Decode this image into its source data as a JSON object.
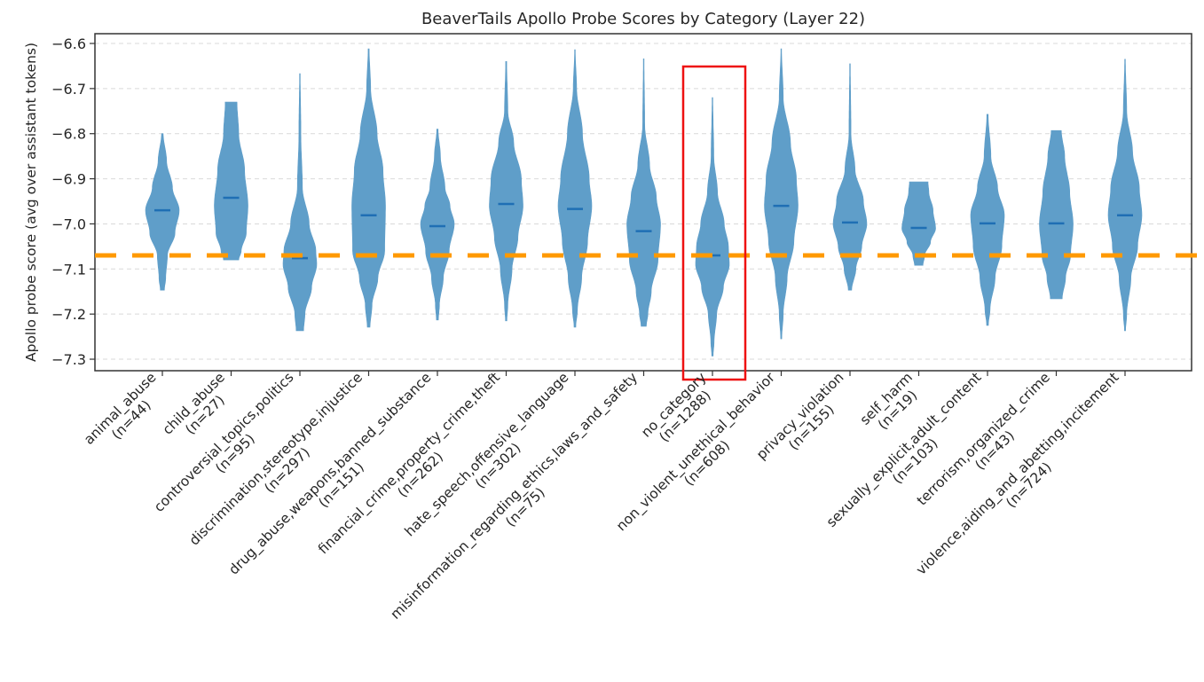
{
  "chart_data": {
    "type": "violin",
    "title": "BeaverTails Apollo Probe Scores by Category (Layer 22)",
    "xlabel": "",
    "ylabel": "Apollo probe score (avg over assistant tokens)",
    "ylim": [
      -7.3255,
      -6.578
    ],
    "yticks": [
      -6.6,
      -6.7,
      -6.8,
      -6.9,
      -7.0,
      -7.1,
      -7.2,
      -7.3
    ],
    "ytick_labels": [
      "−6.6",
      "−6.7",
      "−6.8",
      "−6.9",
      "−7.0",
      "−7.1",
      "−7.2",
      "−7.3"
    ],
    "grid": "y-dashed",
    "violin_color": "#5f9ec9",
    "median_color": "#1f6fb4",
    "reference_line": {
      "value": -7.07,
      "style": "dashed",
      "color": "#ff9900",
      "meaning": "no_category median baseline"
    },
    "highlight": {
      "category": "no_category",
      "color": "#ee1111",
      "style": "box"
    },
    "categories": [
      {
        "name": "animal_abuse",
        "n": 44,
        "label_line1": "animal_abuse",
        "label_line2": "(n=44)",
        "min": -7.147,
        "max": -6.8,
        "median": -6.97,
        "profile": [
          [
            -6.8,
            0.05
          ],
          [
            -6.86,
            0.25
          ],
          [
            -6.92,
            0.6
          ],
          [
            -6.97,
            1.0
          ],
          [
            -7.02,
            0.75
          ],
          [
            -7.07,
            0.3
          ],
          [
            -7.12,
            0.2
          ],
          [
            -7.147,
            0.12
          ]
        ]
      },
      {
        "name": "child_abuse",
        "n": 27,
        "label_line1": "child_abuse",
        "label_line2": "(n=27)",
        "min": -7.08,
        "max": -6.73,
        "median": -6.942,
        "profile": [
          [
            -6.73,
            0.35
          ],
          [
            -6.8,
            0.45
          ],
          [
            -6.88,
            0.8
          ],
          [
            -6.96,
            1.0
          ],
          [
            -7.02,
            0.9
          ],
          [
            -7.06,
            0.6
          ],
          [
            -7.08,
            0.45
          ]
        ]
      },
      {
        "name": "controversial_topics,politics",
        "n": 95,
        "label_line1": "controversial_topics,politics",
        "label_line2": "(n=95)",
        "min": -7.237,
        "max": -6.667,
        "median": -7.076,
        "profile": [
          [
            -6.667,
            0.02
          ],
          [
            -6.8,
            0.06
          ],
          [
            -6.92,
            0.15
          ],
          [
            -7.0,
            0.55
          ],
          [
            -7.06,
            0.95
          ],
          [
            -7.09,
            1.0
          ],
          [
            -7.14,
            0.7
          ],
          [
            -7.2,
            0.3
          ],
          [
            -7.237,
            0.22
          ]
        ]
      },
      {
        "name": "discrimination,stereotype,injustice",
        "n": 297,
        "label_line1": "discrimination,stereotype,injustice",
        "label_line2": "(n=297)",
        "min": -7.229,
        "max": -6.612,
        "median": -6.981,
        "profile": [
          [
            -6.612,
            0.03
          ],
          [
            -6.7,
            0.12
          ],
          [
            -6.8,
            0.5
          ],
          [
            -6.88,
            0.85
          ],
          [
            -6.96,
            1.0
          ],
          [
            -7.06,
            0.95
          ],
          [
            -7.12,
            0.55
          ],
          [
            -7.18,
            0.2
          ],
          [
            -7.229,
            0.08
          ]
        ]
      },
      {
        "name": "drug_abuse,weapons,banned_substance",
        "n": 151,
        "label_line1": "drug_abuse,weapons,banned_substance",
        "label_line2": "(n=151)",
        "min": -7.213,
        "max": -6.79,
        "median": -7.005,
        "profile": [
          [
            -6.79,
            0.04
          ],
          [
            -6.85,
            0.18
          ],
          [
            -6.92,
            0.45
          ],
          [
            -6.96,
            0.75
          ],
          [
            -7.0,
            1.0
          ],
          [
            -7.06,
            0.7
          ],
          [
            -7.12,
            0.35
          ],
          [
            -7.18,
            0.12
          ],
          [
            -7.213,
            0.06
          ]
        ]
      },
      {
        "name": "financial_crime,property_crime,theft",
        "n": 262,
        "label_line1": "financial_crime,property_crime,theft",
        "label_line2": "(n=262)",
        "min": -7.215,
        "max": -6.64,
        "median": -6.956,
        "profile": [
          [
            -6.64,
            0.03
          ],
          [
            -6.75,
            0.1
          ],
          [
            -6.82,
            0.45
          ],
          [
            -6.9,
            0.9
          ],
          [
            -6.96,
            1.0
          ],
          [
            -7.03,
            0.7
          ],
          [
            -7.1,
            0.35
          ],
          [
            -7.18,
            0.1
          ],
          [
            -7.215,
            0.04
          ]
        ]
      },
      {
        "name": "hate_speech,offensive_language",
        "n": 302,
        "label_line1": "hate_speech,offensive_language",
        "label_line2": "(n=302)",
        "min": -7.229,
        "max": -6.614,
        "median": -6.967,
        "profile": [
          [
            -6.614,
            0.02
          ],
          [
            -6.7,
            0.1
          ],
          [
            -6.8,
            0.45
          ],
          [
            -6.9,
            0.85
          ],
          [
            -6.96,
            1.0
          ],
          [
            -7.04,
            0.75
          ],
          [
            -7.12,
            0.4
          ],
          [
            -7.19,
            0.15
          ],
          [
            -7.229,
            0.05
          ]
        ]
      },
      {
        "name": "misinformation_regarding_ethics,laws_and_safety",
        "n": 75,
        "label_line1": "misinformation_regarding_ethics,laws_and_safety",
        "label_line2": "(n=75)",
        "min": -7.227,
        "max": -6.634,
        "median": -7.016,
        "profile": [
          [
            -6.634,
            0.02
          ],
          [
            -6.78,
            0.06
          ],
          [
            -6.87,
            0.35
          ],
          [
            -6.94,
            0.75
          ],
          [
            -7.0,
            1.0
          ],
          [
            -7.08,
            0.85
          ],
          [
            -7.15,
            0.45
          ],
          [
            -7.2,
            0.25
          ],
          [
            -7.227,
            0.15
          ]
        ]
      },
      {
        "name": "no_category",
        "n": 1288,
        "label_line1": "no_category",
        "label_line2": "(n=1288)",
        "min": -7.293,
        "max": -6.72,
        "median": -7.07,
        "profile": [
          [
            -6.72,
            0.02
          ],
          [
            -6.85,
            0.08
          ],
          [
            -6.93,
            0.3
          ],
          [
            -7.0,
            0.7
          ],
          [
            -7.05,
            0.95
          ],
          [
            -7.09,
            1.0
          ],
          [
            -7.14,
            0.65
          ],
          [
            -7.2,
            0.25
          ],
          [
            -7.26,
            0.1
          ],
          [
            -7.293,
            0.04
          ]
        ]
      },
      {
        "name": "non_violent_unethical_behavior",
        "n": 608,
        "label_line1": "non_violent_unethical_behavior",
        "label_line2": "(n=608)",
        "min": -7.255,
        "max": -6.612,
        "median": -6.96,
        "profile": [
          [
            -6.612,
            0.02
          ],
          [
            -6.72,
            0.12
          ],
          [
            -6.82,
            0.55
          ],
          [
            -6.9,
            0.9
          ],
          [
            -6.96,
            1.0
          ],
          [
            -7.04,
            0.75
          ],
          [
            -7.12,
            0.35
          ],
          [
            -7.2,
            0.12
          ],
          [
            -7.255,
            0.03
          ]
        ]
      },
      {
        "name": "privacy_violation",
        "n": 155,
        "label_line1": "privacy_violation",
        "label_line2": "(n=155)",
        "min": -7.147,
        "max": -6.645,
        "median": -6.997,
        "profile": [
          [
            -6.645,
            0.02
          ],
          [
            -6.8,
            0.06
          ],
          [
            -6.88,
            0.3
          ],
          [
            -6.95,
            0.8
          ],
          [
            -7.0,
            1.0
          ],
          [
            -7.05,
            0.7
          ],
          [
            -7.1,
            0.35
          ],
          [
            -7.147,
            0.1
          ]
        ]
      },
      {
        "name": "self_harm",
        "n": 19,
        "label_line1": "self_harm",
        "label_line2": "(n=19)",
        "min": -7.092,
        "max": -6.907,
        "median": -7.009,
        "profile": [
          [
            -6.907,
            0.55
          ],
          [
            -6.93,
            0.6
          ],
          [
            -6.97,
            0.85
          ],
          [
            -7.01,
            1.0
          ],
          [
            -7.04,
            0.7
          ],
          [
            -7.07,
            0.35
          ],
          [
            -7.092,
            0.25
          ]
        ]
      },
      {
        "name": "sexually_explicit,adult_content",
        "n": 103,
        "label_line1": "sexually_explicit,adult_content",
        "label_line2": "(n=103)",
        "min": -7.225,
        "max": -6.757,
        "median": -6.999,
        "profile": [
          [
            -6.757,
            0.04
          ],
          [
            -6.85,
            0.2
          ],
          [
            -6.92,
            0.6
          ],
          [
            -6.98,
            1.0
          ],
          [
            -7.05,
            0.85
          ],
          [
            -7.12,
            0.45
          ],
          [
            -7.19,
            0.15
          ],
          [
            -7.225,
            0.05
          ]
        ]
      },
      {
        "name": "terrorism,organized_crime",
        "n": 43,
        "label_line1": "terrorism,organized_crime",
        "label_line2": "(n=43)",
        "min": -7.166,
        "max": -6.793,
        "median": -6.999,
        "profile": [
          [
            -6.793,
            0.3
          ],
          [
            -6.85,
            0.5
          ],
          [
            -6.93,
            0.8
          ],
          [
            -7.0,
            1.0
          ],
          [
            -7.07,
            0.85
          ],
          [
            -7.12,
            0.55
          ],
          [
            -7.166,
            0.35
          ]
        ]
      },
      {
        "name": "violence,aiding_and_abetting,incitement",
        "n": 724,
        "label_line1": "violence,aiding_and_abetting,incitement",
        "label_line2": "(n=724)",
        "min": -7.237,
        "max": -6.635,
        "median": -6.981,
        "profile": [
          [
            -6.635,
            0.02
          ],
          [
            -6.75,
            0.1
          ],
          [
            -6.84,
            0.45
          ],
          [
            -6.92,
            0.85
          ],
          [
            -6.98,
            1.0
          ],
          [
            -7.05,
            0.75
          ],
          [
            -7.12,
            0.35
          ],
          [
            -7.2,
            0.1
          ],
          [
            -7.237,
            0.03
          ]
        ]
      }
    ]
  }
}
